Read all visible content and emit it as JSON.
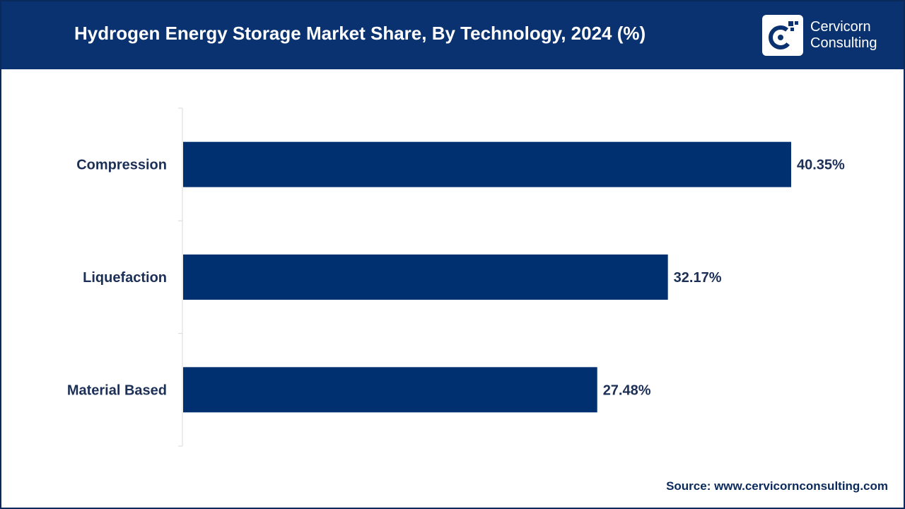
{
  "header": {
    "title": "Hydrogen Energy Storage Market Share, By Technology, 2024 (%)",
    "brand_line1": "Cervicorn",
    "brand_line2": "Consulting"
  },
  "footer": {
    "source": "Source: www.cervicornconsulting.com"
  },
  "colors": {
    "header_bg": "#0b3270",
    "bar": "#003070",
    "text": "#1b2f57"
  },
  "chart_data": {
    "type": "bar",
    "orientation": "horizontal",
    "title": "Hydrogen Energy Storage Market Share, By Technology, 2024 (%)",
    "categories": [
      "Compression",
      "Liquefaction",
      "Material Based"
    ],
    "values": [
      40.35,
      32.17,
      27.48
    ],
    "value_labels": [
      "40.35%",
      "32.17%",
      "27.48%"
    ],
    "xlabel": "",
    "ylabel": "",
    "xlim": [
      0,
      45
    ],
    "grid": false,
    "legend": "none"
  }
}
